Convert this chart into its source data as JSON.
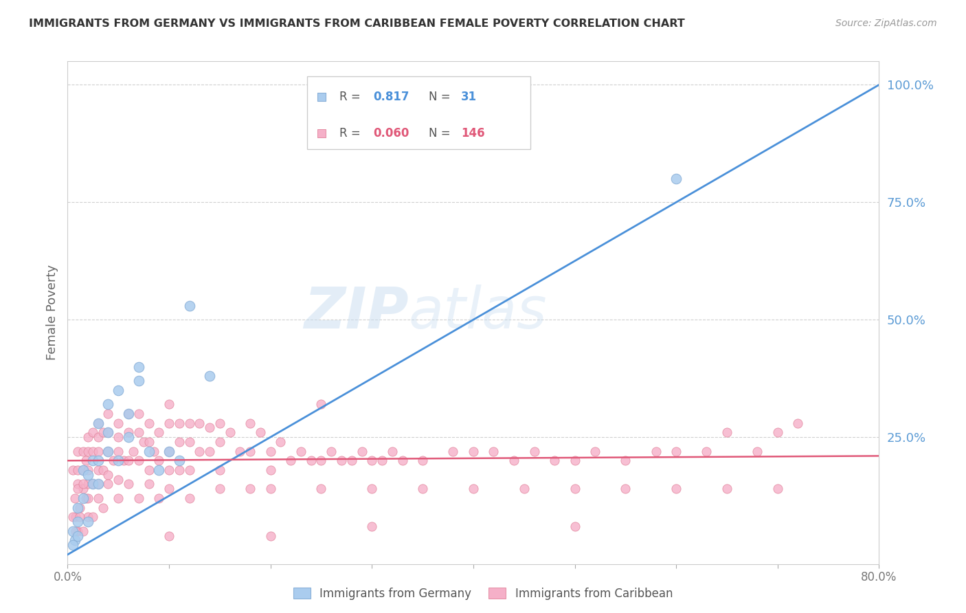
{
  "title": "IMMIGRANTS FROM GERMANY VS IMMIGRANTS FROM CARIBBEAN FEMALE POVERTY CORRELATION CHART",
  "source": "Source: ZipAtlas.com",
  "ylabel": "Female Poverty",
  "ytick_labels": [
    "100.0%",
    "75.0%",
    "50.0%",
    "25.0%"
  ],
  "ytick_values": [
    1.0,
    0.75,
    0.5,
    0.25
  ],
  "legend": {
    "germany": {
      "R": "0.817",
      "N": "31"
    },
    "caribbean": {
      "R": "0.060",
      "N": "146"
    }
  },
  "xlim": [
    0.0,
    0.8
  ],
  "ylim": [
    -0.02,
    1.05
  ],
  "germany_scatter": {
    "x": [
      0.005,
      0.007,
      0.01,
      0.01,
      0.01,
      0.015,
      0.015,
      0.02,
      0.02,
      0.025,
      0.025,
      0.03,
      0.03,
      0.03,
      0.04,
      0.04,
      0.04,
      0.05,
      0.05,
      0.06,
      0.06,
      0.07,
      0.07,
      0.08,
      0.09,
      0.1,
      0.11,
      0.12,
      0.14,
      0.6,
      0.005
    ],
    "y": [
      0.05,
      0.03,
      0.1,
      0.07,
      0.04,
      0.18,
      0.12,
      0.17,
      0.07,
      0.2,
      0.15,
      0.28,
      0.2,
      0.15,
      0.32,
      0.26,
      0.22,
      0.35,
      0.2,
      0.3,
      0.25,
      0.4,
      0.37,
      0.22,
      0.18,
      0.22,
      0.2,
      0.53,
      0.38,
      0.8,
      0.02
    ]
  },
  "caribbean_scatter": {
    "x": [
      0.005,
      0.007,
      0.008,
      0.01,
      0.01,
      0.01,
      0.01,
      0.012,
      0.015,
      0.015,
      0.015,
      0.015,
      0.018,
      0.018,
      0.02,
      0.02,
      0.02,
      0.02,
      0.02,
      0.025,
      0.025,
      0.025,
      0.03,
      0.03,
      0.03,
      0.03,
      0.03,
      0.035,
      0.035,
      0.04,
      0.04,
      0.04,
      0.04,
      0.045,
      0.05,
      0.05,
      0.05,
      0.05,
      0.055,
      0.06,
      0.06,
      0.06,
      0.065,
      0.07,
      0.07,
      0.07,
      0.075,
      0.08,
      0.08,
      0.08,
      0.085,
      0.09,
      0.09,
      0.1,
      0.1,
      0.1,
      0.1,
      0.11,
      0.11,
      0.11,
      0.12,
      0.12,
      0.12,
      0.13,
      0.13,
      0.14,
      0.14,
      0.15,
      0.15,
      0.15,
      0.16,
      0.17,
      0.18,
      0.18,
      0.19,
      0.2,
      0.2,
      0.21,
      0.22,
      0.23,
      0.24,
      0.25,
      0.26,
      0.27,
      0.28,
      0.29,
      0.3,
      0.31,
      0.32,
      0.33,
      0.35,
      0.38,
      0.4,
      0.42,
      0.44,
      0.46,
      0.48,
      0.5,
      0.52,
      0.55,
      0.58,
      0.6,
      0.63,
      0.65,
      0.68,
      0.7,
      0.72,
      0.005,
      0.008,
      0.01,
      0.012,
      0.015,
      0.02,
      0.025,
      0.03,
      0.035,
      0.04,
      0.05,
      0.06,
      0.07,
      0.08,
      0.09,
      0.1,
      0.12,
      0.15,
      0.18,
      0.2,
      0.25,
      0.3,
      0.35,
      0.4,
      0.45,
      0.5,
      0.55,
      0.6,
      0.65,
      0.7,
      0.5,
      0.2,
      0.3,
      0.1,
      0.25
    ],
    "y": [
      0.18,
      0.12,
      0.08,
      0.22,
      0.18,
      0.15,
      0.05,
      0.1,
      0.22,
      0.18,
      0.14,
      0.05,
      0.2,
      0.12,
      0.25,
      0.22,
      0.18,
      0.15,
      0.08,
      0.26,
      0.22,
      0.15,
      0.28,
      0.25,
      0.22,
      0.18,
      0.12,
      0.26,
      0.18,
      0.3,
      0.26,
      0.22,
      0.17,
      0.2,
      0.28,
      0.25,
      0.22,
      0.16,
      0.2,
      0.3,
      0.26,
      0.2,
      0.22,
      0.3,
      0.26,
      0.2,
      0.24,
      0.28,
      0.24,
      0.18,
      0.22,
      0.26,
      0.2,
      0.32,
      0.28,
      0.22,
      0.18,
      0.28,
      0.24,
      0.18,
      0.28,
      0.24,
      0.18,
      0.28,
      0.22,
      0.27,
      0.22,
      0.28,
      0.24,
      0.18,
      0.26,
      0.22,
      0.28,
      0.22,
      0.26,
      0.22,
      0.18,
      0.24,
      0.2,
      0.22,
      0.2,
      0.2,
      0.22,
      0.2,
      0.2,
      0.22,
      0.2,
      0.2,
      0.22,
      0.2,
      0.2,
      0.22,
      0.22,
      0.22,
      0.2,
      0.22,
      0.2,
      0.2,
      0.22,
      0.2,
      0.22,
      0.22,
      0.22,
      0.26,
      0.22,
      0.26,
      0.28,
      0.08,
      0.05,
      0.14,
      0.08,
      0.15,
      0.12,
      0.08,
      0.15,
      0.1,
      0.15,
      0.12,
      0.15,
      0.12,
      0.15,
      0.12,
      0.14,
      0.12,
      0.14,
      0.14,
      0.14,
      0.14,
      0.14,
      0.14,
      0.14,
      0.14,
      0.14,
      0.14,
      0.14,
      0.14,
      0.14,
      0.06,
      0.04,
      0.06,
      0.04,
      0.32
    ]
  },
  "germany_line": {
    "x0": 0.0,
    "y0": 0.0,
    "x1": 0.8,
    "y1": 1.0
  },
  "caribbean_line": {
    "x0": 0.0,
    "y0": 0.2,
    "x1": 0.8,
    "y1": 0.21
  },
  "background_color": "#ffffff",
  "plot_background": "#ffffff",
  "grid_color": "#d0d0d0",
  "axis_color": "#cccccc",
  "title_color": "#333333",
  "right_tick_color": "#5b9bd5",
  "scatter_germany_color": "#aaccee",
  "scatter_germany_edge": "#8ab0d8",
  "scatter_caribbean_color": "#f5b0c8",
  "scatter_caribbean_edge": "#e08098",
  "line_germany_color": "#4a90d9",
  "line_caribbean_color": "#e05878",
  "legend_R_color_germany": "#4a90d9",
  "legend_N_color_germany": "#4a90d9",
  "legend_R_color_caribbean": "#e05878",
  "legend_N_color_caribbean": "#e05878"
}
